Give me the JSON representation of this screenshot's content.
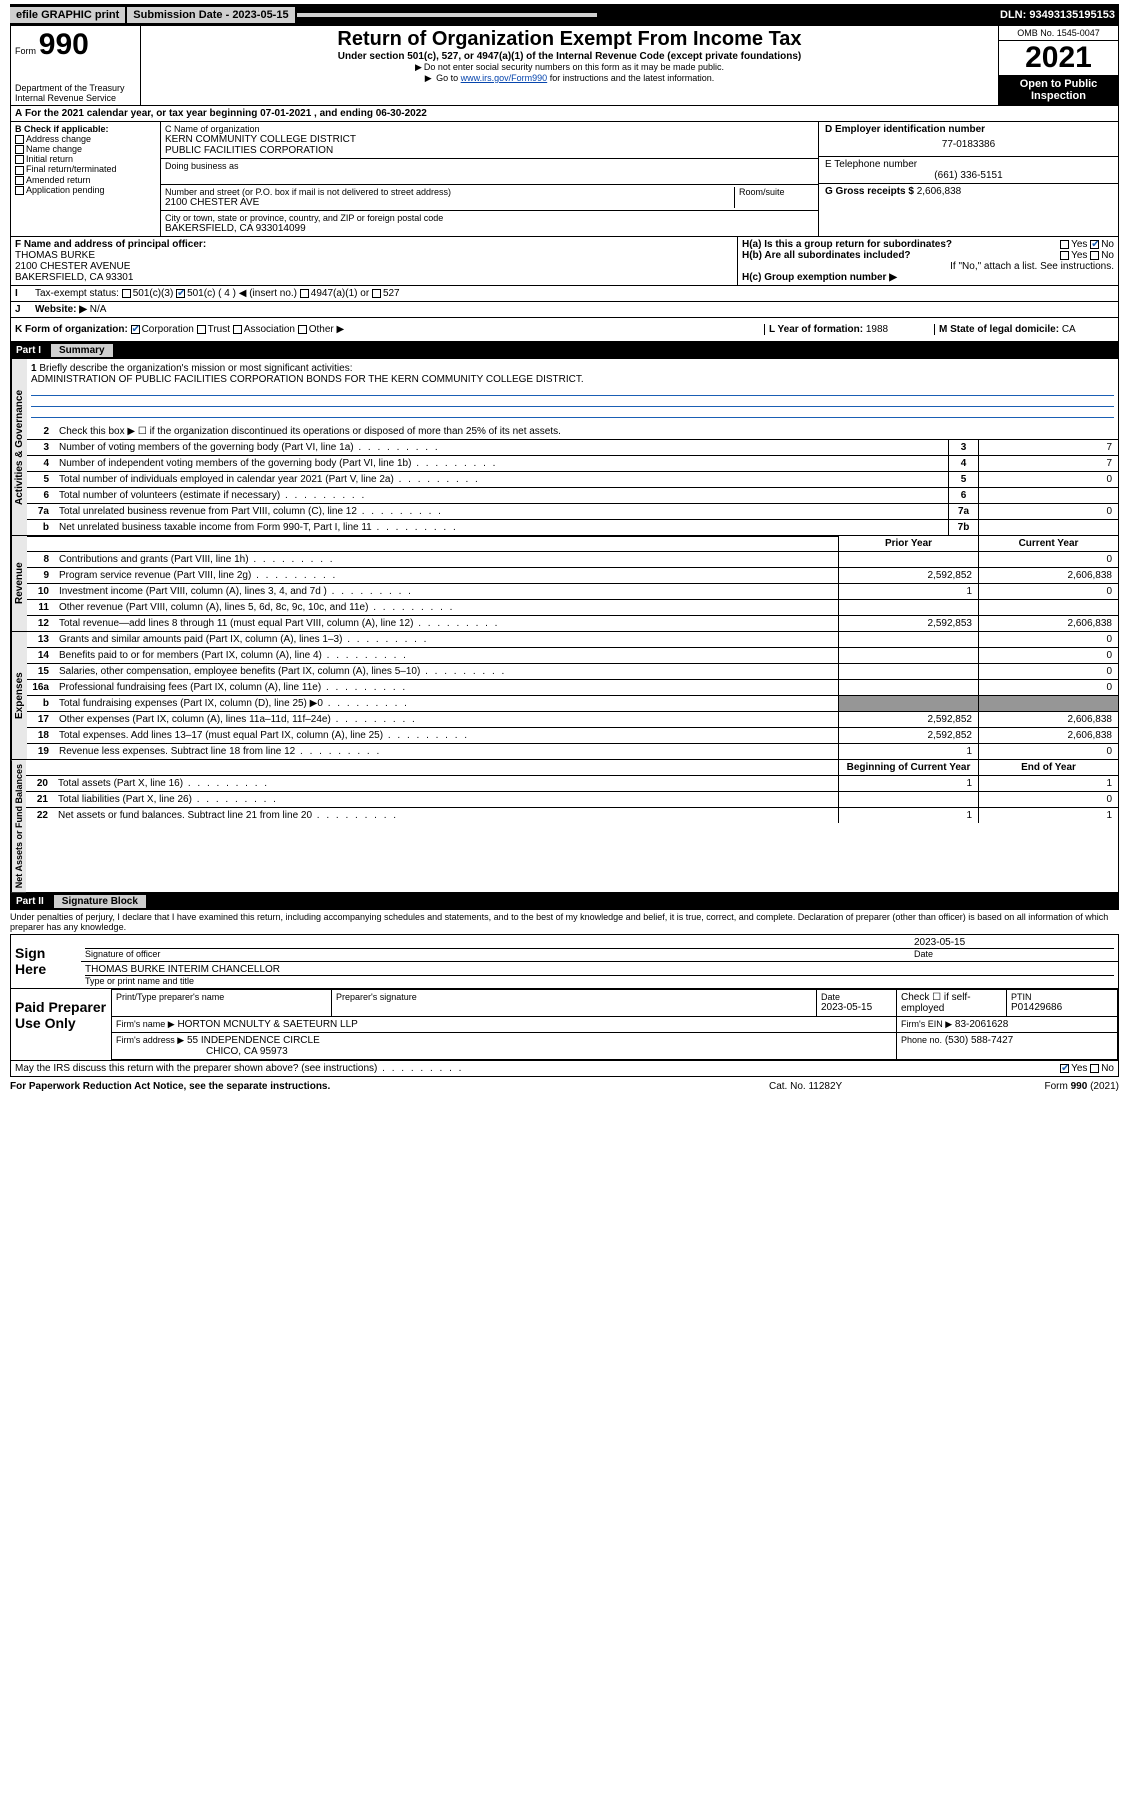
{
  "topbar": {
    "efile": "efile GRAPHIC print",
    "submission_label": "Submission Date - 2023-05-15",
    "dln": "DLN: 93493135195153"
  },
  "header": {
    "form_prefix": "Form",
    "form_no": "990",
    "title": "Return of Organization Exempt From Income Tax",
    "sub1": "Under section 501(c), 527, or 4947(a)(1) of the Internal Revenue Code (except private foundations)",
    "sub2": "Do not enter social security numbers on this form as it may be made public.",
    "sub3_pre": "Go to ",
    "sub3_link": "www.irs.gov/Form990",
    "sub3_post": " for instructions and the latest information.",
    "dept": "Department of the Treasury",
    "irs": "Internal Revenue Service",
    "omb": "OMB No. 1545-0047",
    "year": "2021",
    "openpub": "Open to Public Inspection"
  },
  "a_row": "For the 2021 calendar year, or tax year beginning 07-01-2021   , and ending 06-30-2022",
  "b": {
    "label": "B Check if applicable:",
    "items": [
      "Address change",
      "Name change",
      "Initial return",
      "Final return/terminated",
      "Amended return",
      "Application pending"
    ]
  },
  "c": {
    "name_label": "C Name of organization",
    "name1": "KERN COMMUNITY COLLEGE DISTRICT",
    "name2": "PUBLIC FACILITIES CORPORATION",
    "dba_label": "Doing business as",
    "addr_label": "Number and street (or P.O. box if mail is not delivered to street address)",
    "room_label": "Room/suite",
    "addr": "2100 CHESTER AVE",
    "city_label": "City or town, state or province, country, and ZIP or foreign postal code",
    "city": "BAKERSFIELD, CA  933014099"
  },
  "d": {
    "ein_label": "D Employer identification number",
    "ein": "77-0183386",
    "phone_label": "E Telephone number",
    "phone": "(661) 336-5151",
    "gross_label": "G Gross receipts $",
    "gross": "2,606,838"
  },
  "f": {
    "label": "F  Name and address of principal officer:",
    "name": "THOMAS BURKE",
    "addr1": "2100 CHESTER AVENUE",
    "addr2": "BAKERSFIELD, CA  93301"
  },
  "h": {
    "a_label": "H(a)  Is this a group return for subordinates?",
    "yes": "Yes",
    "no": "No",
    "b_label": "H(b)  Are all subordinates included?",
    "attach": "If \"No,\" attach a list. See instructions.",
    "c_label": "H(c)  Group exemption number ▶"
  },
  "i": {
    "label": "Tax-exempt status:",
    "opts": [
      "501(c)(3)",
      "501(c) ( 4 ) ◀ (insert no.)",
      "4947(a)(1) or",
      "527"
    ]
  },
  "j": {
    "label": "Website: ▶",
    "val": "N/A"
  },
  "k": {
    "label": "K Form of organization:",
    "opts": [
      "Corporation",
      "Trust",
      "Association",
      "Other ▶"
    ]
  },
  "l": {
    "label": "L Year of formation:",
    "val": "1988"
  },
  "m": {
    "label": "M State of legal domicile:",
    "val": "CA"
  },
  "part1": {
    "part": "Part I",
    "title": "Summary",
    "mission_label": "Briefly describe the organization's mission or most significant activities:",
    "mission": "ADMINISTRATION OF PUBLIC FACILITIES CORPORATION BONDS FOR THE KERN COMMUNITY COLLEGE DISTRICT.",
    "line2": "Check this box ▶ ☐  if the organization discontinued its operations or disposed of more than 25% of its net assets.",
    "lines_ag": [
      {
        "n": "3",
        "t": "Number of voting members of the governing body (Part VI, line 1a)",
        "box": "3",
        "v": "7"
      },
      {
        "n": "4",
        "t": "Number of independent voting members of the governing body (Part VI, line 1b)",
        "box": "4",
        "v": "7"
      },
      {
        "n": "5",
        "t": "Total number of individuals employed in calendar year 2021 (Part V, line 2a)",
        "box": "5",
        "v": "0"
      },
      {
        "n": "6",
        "t": "Total number of volunteers (estimate if necessary)",
        "box": "6",
        "v": ""
      },
      {
        "n": "7a",
        "t": "Total unrelated business revenue from Part VIII, column (C), line 12",
        "box": "7a",
        "v": "0"
      },
      {
        "n": "b",
        "t": "Net unrelated business taxable income from Form 990-T, Part I, line 11",
        "box": "7b",
        "v": ""
      }
    ],
    "col_hdr_prior": "Prior Year",
    "col_hdr_curr": "Current Year",
    "revenue": [
      {
        "n": "8",
        "t": "Contributions and grants (Part VIII, line 1h)",
        "p": "",
        "c": "0"
      },
      {
        "n": "9",
        "t": "Program service revenue (Part VIII, line 2g)",
        "p": "2,592,852",
        "c": "2,606,838"
      },
      {
        "n": "10",
        "t": "Investment income (Part VIII, column (A), lines 3, 4, and 7d )",
        "p": "1",
        "c": "0"
      },
      {
        "n": "11",
        "t": "Other revenue (Part VIII, column (A), lines 5, 6d, 8c, 9c, 10c, and 11e)",
        "p": "",
        "c": ""
      },
      {
        "n": "12",
        "t": "Total revenue—add lines 8 through 11 (must equal Part VIII, column (A), line 12)",
        "p": "2,592,853",
        "c": "2,606,838"
      }
    ],
    "expenses": [
      {
        "n": "13",
        "t": "Grants and similar amounts paid (Part IX, column (A), lines 1–3)",
        "p": "",
        "c": "0"
      },
      {
        "n": "14",
        "t": "Benefits paid to or for members (Part IX, column (A), line 4)",
        "p": "",
        "c": "0"
      },
      {
        "n": "15",
        "t": "Salaries, other compensation, employee benefits (Part IX, column (A), lines 5–10)",
        "p": "",
        "c": "0"
      },
      {
        "n": "16a",
        "t": "Professional fundraising fees (Part IX, column (A), line 11e)",
        "p": "",
        "c": "0"
      },
      {
        "n": "b",
        "t": "Total fundraising expenses (Part IX, column (D), line 25) ▶0",
        "p": "shade",
        "c": "shade"
      },
      {
        "n": "17",
        "t": "Other expenses (Part IX, column (A), lines 11a–11d, 11f–24e)",
        "p": "2,592,852",
        "c": "2,606,838"
      },
      {
        "n": "18",
        "t": "Total expenses. Add lines 13–17 (must equal Part IX, column (A), line 25)",
        "p": "2,592,852",
        "c": "2,606,838"
      },
      {
        "n": "19",
        "t": "Revenue less expenses. Subtract line 18 from line 12",
        "p": "1",
        "c": "0"
      }
    ],
    "col_hdr_beg": "Beginning of Current Year",
    "col_hdr_end": "End of Year",
    "netassets": [
      {
        "n": "20",
        "t": "Total assets (Part X, line 16)",
        "p": "1",
        "c": "1"
      },
      {
        "n": "21",
        "t": "Total liabilities (Part X, line 26)",
        "p": "",
        "c": "0"
      },
      {
        "n": "22",
        "t": "Net assets or fund balances. Subtract line 21 from line 20",
        "p": "1",
        "c": "1"
      }
    ],
    "vlabels": {
      "ag": "Activities & Governance",
      "rev": "Revenue",
      "exp": "Expenses",
      "na": "Net Assets or Fund Balances"
    }
  },
  "part2": {
    "part": "Part II",
    "title": "Signature Block",
    "penalty": "Under penalties of perjury, I declare that I have examined this return, including accompanying schedules and statements, and to the best of my knowledge and belief, it is true, correct, and complete. Declaration of preparer (other than officer) is based on all information of which preparer has any knowledge.",
    "sign_here": "Sign Here",
    "sig_officer": "Signature of officer",
    "sig_date": "2023-05-15",
    "date_label": "Date",
    "officer_name": "THOMAS BURKE  INTERIM CHANCELLOR",
    "type_label": "Type or print name and title",
    "paid": "Paid Preparer Use Only",
    "prep_name_label": "Print/Type preparer's name",
    "prep_sig_label": "Preparer's signature",
    "prep_date_label": "Date",
    "prep_date": "2023-05-15",
    "check_self": "Check ☐ if self-employed",
    "ptin_label": "PTIN",
    "ptin": "P01429686",
    "firm_name_label": "Firm's name    ▶",
    "firm_name": "HORTON MCNULTY & SAETEURN LLP",
    "firm_ein_label": "Firm's EIN ▶",
    "firm_ein": "83-2061628",
    "firm_addr_label": "Firm's address ▶",
    "firm_addr1": "55 INDEPENDENCE CIRCLE",
    "firm_addr2": "CHICO, CA  95973",
    "firm_phone_label": "Phone no.",
    "firm_phone": "(530) 588-7427",
    "discuss": "May the IRS discuss this return with the preparer shown above? (see instructions)",
    "discuss_yes": "Yes",
    "discuss_no": "No"
  },
  "footer": {
    "left": "For Paperwork Reduction Act Notice, see the separate instructions.",
    "mid": "Cat. No. 11282Y",
    "right": "Form 990 (2021)"
  }
}
